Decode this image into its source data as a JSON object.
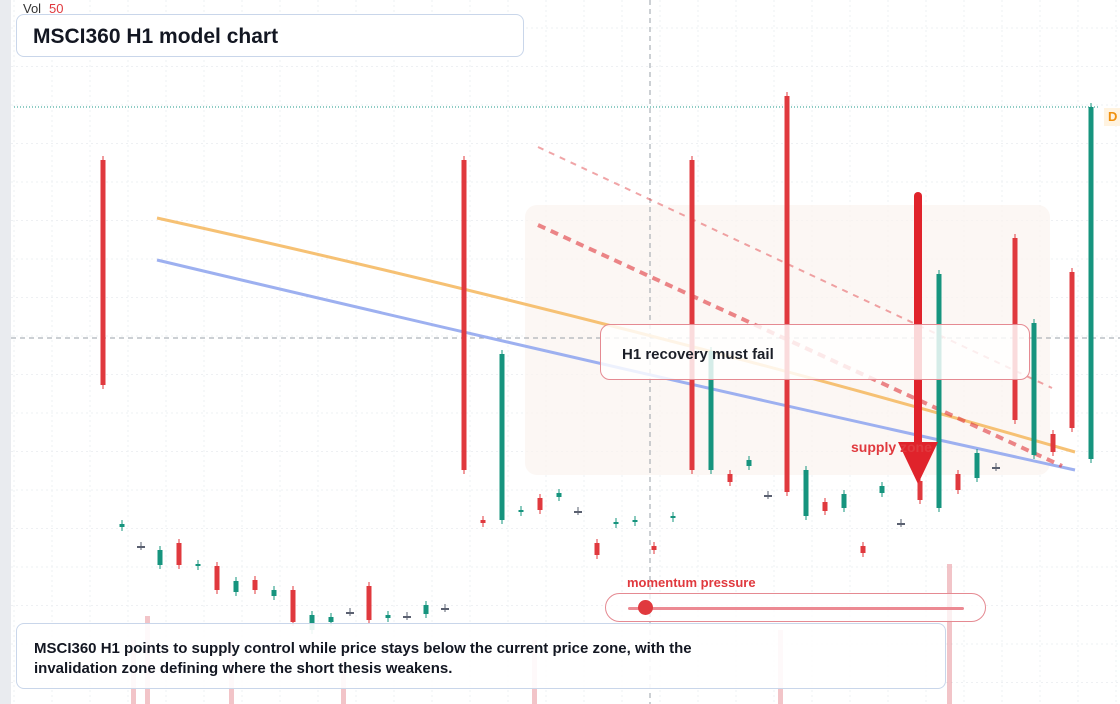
{
  "header": {
    "vol_label": "Vol",
    "vol_value": "50",
    "title": "MSCI360 H1 model chart"
  },
  "annotations": {
    "callout": "H1 recovery must fail",
    "supply_zone": "supply zone",
    "edge_tag": "D",
    "momentum_label": "momentum pressure",
    "momentum_level": 0.05,
    "summary": "MSCI360 H1 points to supply control while price stays below the current price zone, with the invalidation zone defining where the short thesis weakens."
  },
  "colors": {
    "bull": "#16947e",
    "bear": "#e0393e",
    "orange_line": "#f6c174",
    "blue_line": "#9db0f0",
    "reference_line": "#1d9a8a",
    "accent": "#e0393e"
  },
  "chart_data": {
    "type": "candlestick",
    "title": "MSCI360 H1 model chart",
    "y_axis": "hidden",
    "grid": true,
    "candles": [
      {
        "dir": "down",
        "open": 160,
        "close": 385
      },
      {
        "dir": "up",
        "open": 527,
        "close": 524
      },
      {
        "dir": "none",
        "open": 546,
        "close": 546
      },
      {
        "dir": "up",
        "open": 565,
        "close": 550
      },
      {
        "dir": "down",
        "open": 543,
        "close": 565
      },
      {
        "dir": "up",
        "open": 566,
        "close": 564
      },
      {
        "dir": "down",
        "open": 566,
        "close": 590
      },
      {
        "dir": "up",
        "open": 592,
        "close": 581
      },
      {
        "dir": "down",
        "open": 580,
        "close": 590
      },
      {
        "dir": "up",
        "open": 596,
        "close": 590
      },
      {
        "dir": "down",
        "open": 590,
        "close": 622
      },
      {
        "dir": "up",
        "open": 615,
        "close": 630
      },
      {
        "dir": "up",
        "open": 622,
        "close": 617
      },
      {
        "dir": "none",
        "open": 612,
        "close": 612
      },
      {
        "dir": "down",
        "open": 586,
        "close": 620
      },
      {
        "dir": "up",
        "open": 618,
        "close": 615
      },
      {
        "dir": "none",
        "open": 616,
        "close": 616
      },
      {
        "dir": "up",
        "open": 614,
        "close": 605
      },
      {
        "dir": "none",
        "open": 608,
        "close": 608
      },
      {
        "dir": "down",
        "open": 160,
        "close": 470
      },
      {
        "dir": "down",
        "open": 520,
        "close": 523
      },
      {
        "dir": "up",
        "open": 520,
        "close": 354
      },
      {
        "dir": "up",
        "open": 512,
        "close": 510
      },
      {
        "dir": "down",
        "open": 498,
        "close": 510
      },
      {
        "dir": "up",
        "open": 493,
        "close": 497
      },
      {
        "dir": "none",
        "open": 511,
        "close": 511
      },
      {
        "dir": "down",
        "open": 543,
        "close": 555
      },
      {
        "dir": "up",
        "open": 524,
        "close": 522
      },
      {
        "dir": "up",
        "open": 522,
        "close": 520
      },
      {
        "dir": "down",
        "open": 546,
        "close": 550
      },
      {
        "dir": "up",
        "open": 516,
        "close": 518
      },
      {
        "dir": "down",
        "open": 160,
        "close": 470
      },
      {
        "dir": "up",
        "open": 470,
        "close": 351
      },
      {
        "dir": "down",
        "open": 474,
        "close": 482
      },
      {
        "dir": "up",
        "open": 466,
        "close": 460
      },
      {
        "dir": "none",
        "open": 495,
        "close": 495
      },
      {
        "dir": "down",
        "open": 96,
        "close": 492
      },
      {
        "dir": "up",
        "open": 516,
        "close": 470
      },
      {
        "dir": "down",
        "open": 502,
        "close": 511
      },
      {
        "dir": "up",
        "open": 508,
        "close": 494
      },
      {
        "dir": "down",
        "open": 546,
        "close": 553
      },
      {
        "dir": "up",
        "open": 486,
        "close": 493
      },
      {
        "dir": "none",
        "open": 523,
        "close": 523
      },
      {
        "dir": "down",
        "open": 481,
        "close": 500
      },
      {
        "dir": "up",
        "open": 508,
        "close": 274
      },
      {
        "dir": "down",
        "open": 474,
        "close": 490
      },
      {
        "dir": "up",
        "open": 453,
        "close": 478
      },
      {
        "dir": "none",
        "open": 467,
        "close": 467
      },
      {
        "dir": "down",
        "open": 238,
        "close": 420
      },
      {
        "dir": "up",
        "open": 455,
        "close": 323
      },
      {
        "dir": "down",
        "open": 434,
        "close": 452
      },
      {
        "dir": "down",
        "open": 272,
        "close": 428
      },
      {
        "dir": "up",
        "open": 459,
        "close": 107
      }
    ],
    "overlays": [
      {
        "name": "",
        "kind": "trend-line",
        "color": "#f6c174"
      },
      {
        "name": "",
        "kind": "trend-line",
        "color": "#9db0f0"
      },
      {
        "name": "",
        "kind": "dashed-trend",
        "color": "#e0393e"
      }
    ]
  }
}
